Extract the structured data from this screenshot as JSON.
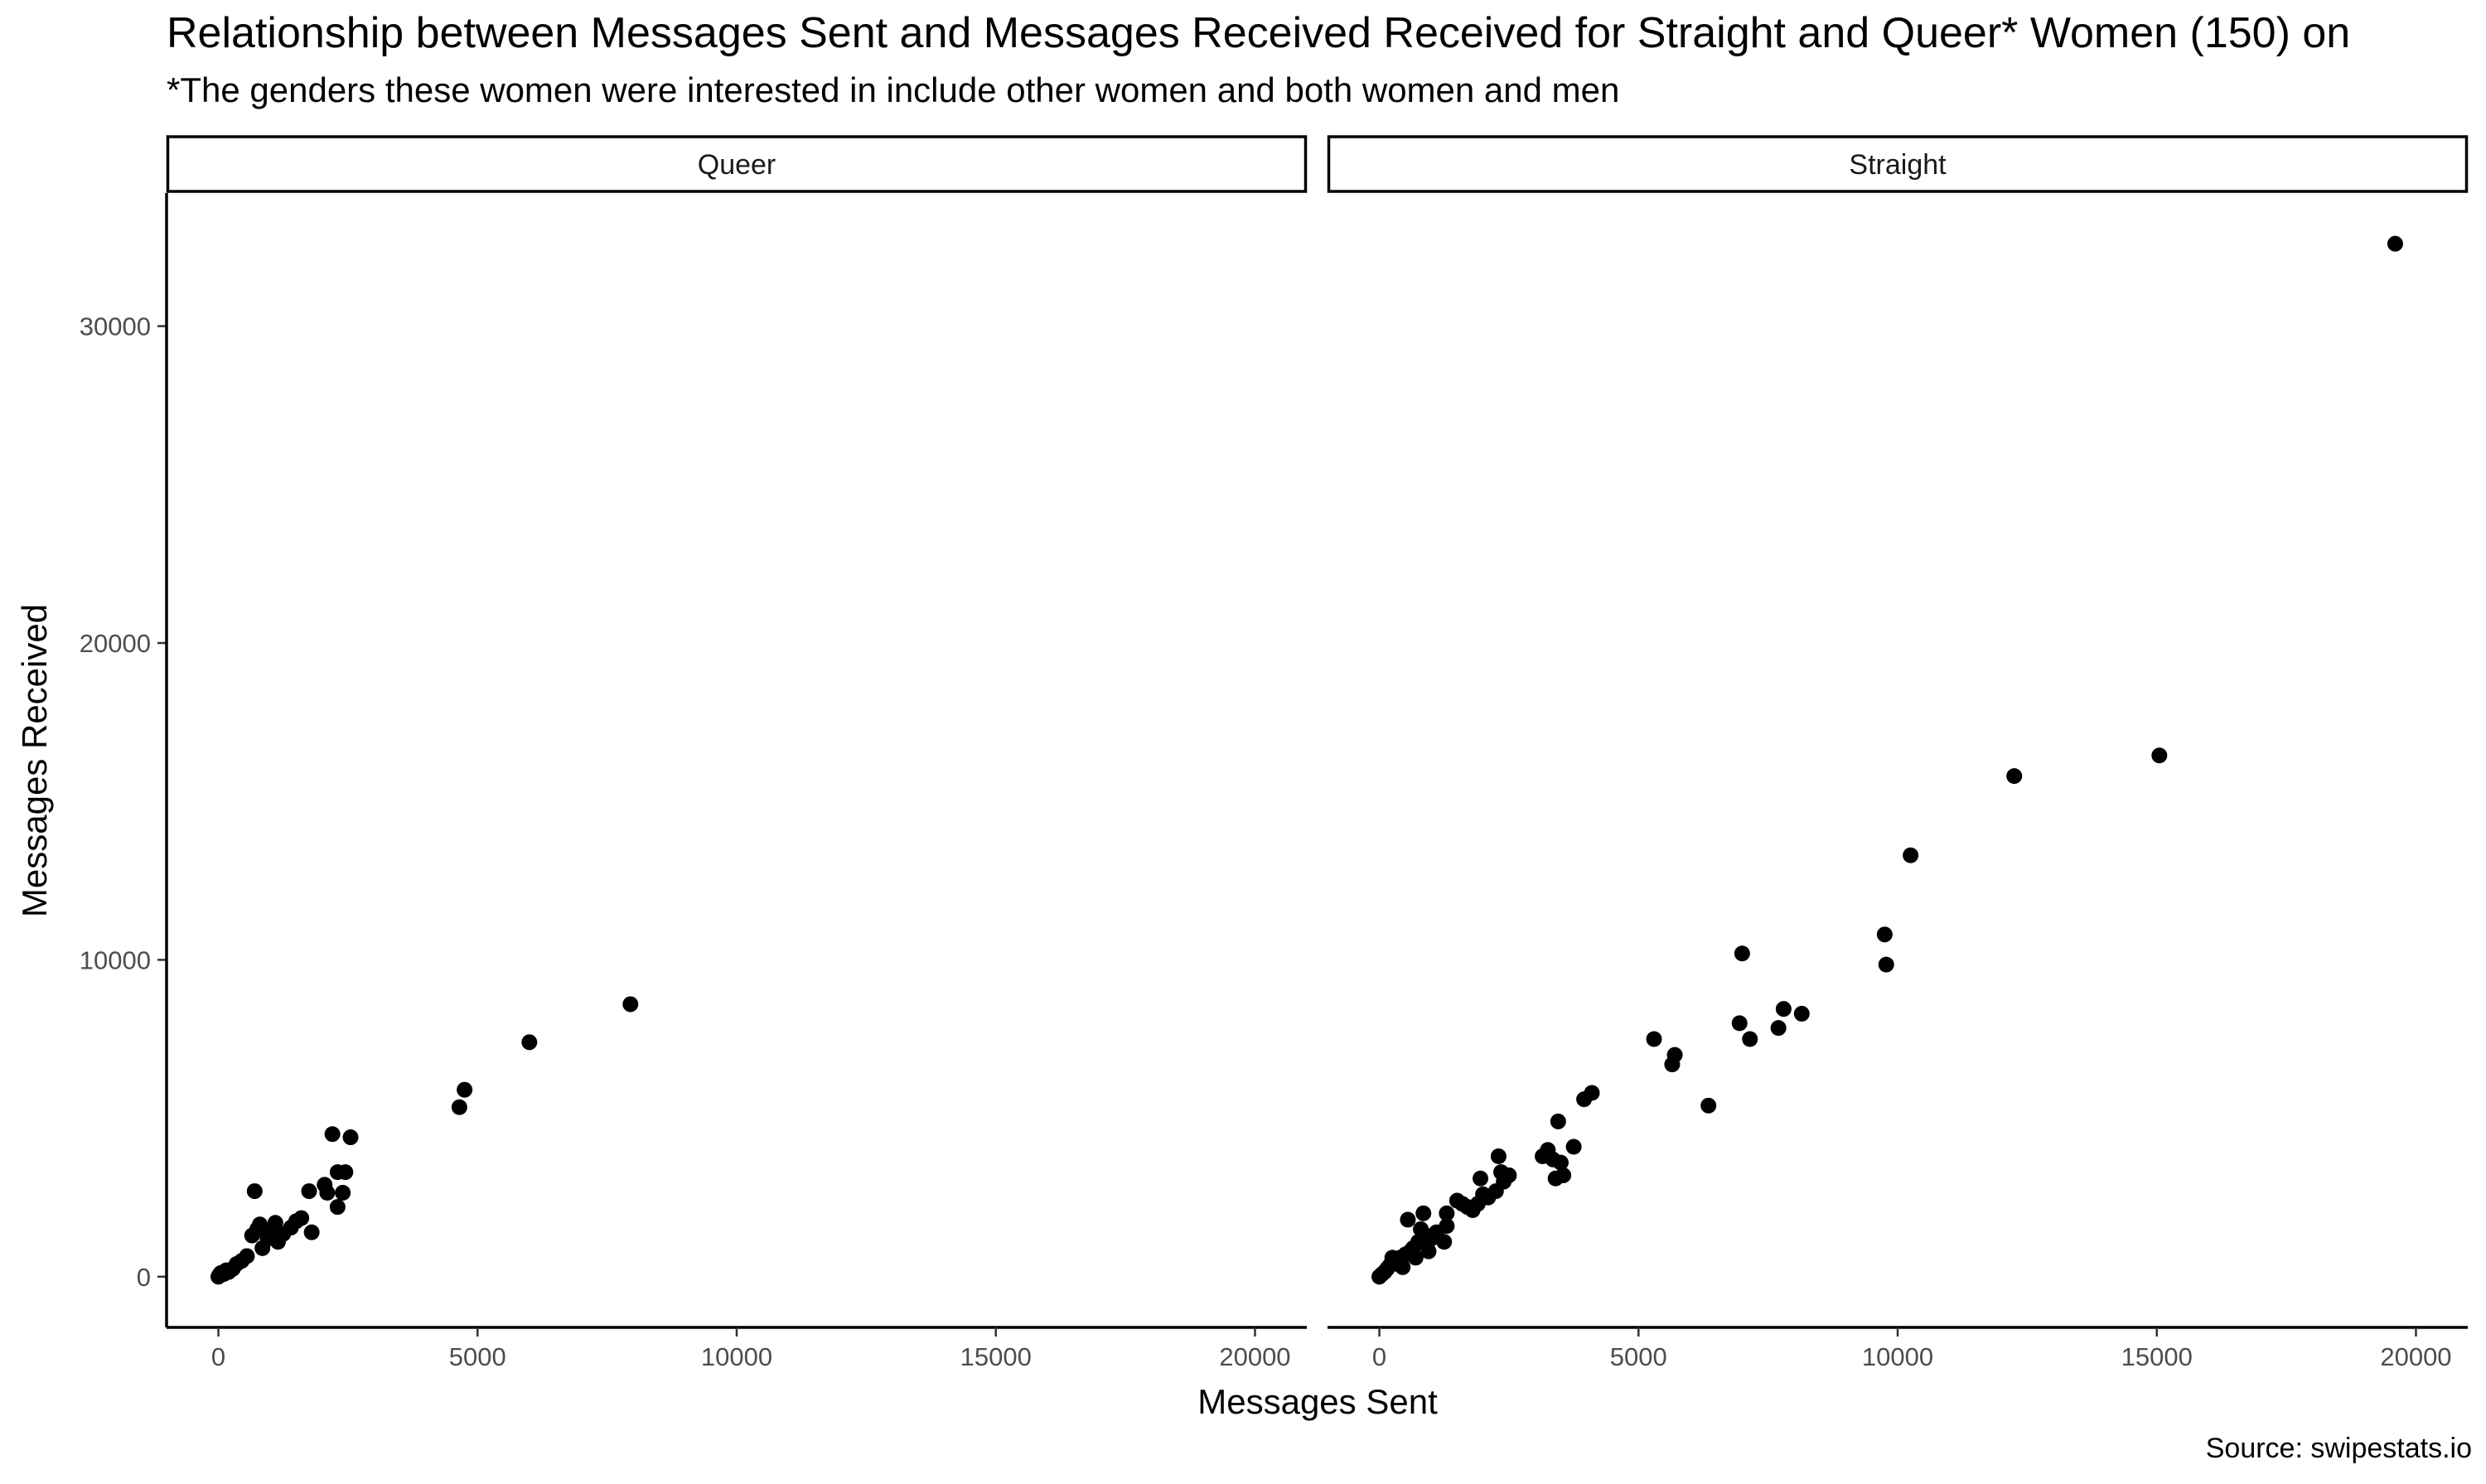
{
  "chart_data": {
    "type": "scatter",
    "title": "Relationship between Messages Sent and Messages Received Received for Straight and Queer* Women (150) on",
    "subtitle": "*The genders these women were interested in include other women and both women and men",
    "caption": "Source: swipestats.io",
    "xlabel": "Messages Sent",
    "ylabel": "Messages Received",
    "xlim": [
      -1000,
      21000
    ],
    "ylim": [
      -1600,
      34200
    ],
    "xticks": [
      0,
      5000,
      10000,
      15000,
      20000
    ],
    "yticks": [
      0,
      10000,
      20000,
      30000
    ],
    "point_color": "#000000",
    "panels": [
      {
        "label": "Queer",
        "points": [
          [
            0,
            0
          ],
          [
            20,
            60
          ],
          [
            50,
            120
          ],
          [
            100,
            80
          ],
          [
            150,
            200
          ],
          [
            200,
            150
          ],
          [
            280,
            250
          ],
          [
            350,
            400
          ],
          [
            450,
            500
          ],
          [
            550,
            650
          ],
          [
            650,
            1300
          ],
          [
            700,
            2700
          ],
          [
            750,
            1500
          ],
          [
            800,
            1650
          ],
          [
            850,
            900
          ],
          [
            950,
            1200
          ],
          [
            1000,
            1400
          ],
          [
            1100,
            1700
          ],
          [
            1150,
            1100
          ],
          [
            1250,
            1350
          ],
          [
            1400,
            1550
          ],
          [
            1500,
            1750
          ],
          [
            1600,
            1850
          ],
          [
            1750,
            2700
          ],
          [
            1800,
            1400
          ],
          [
            2050,
            2900
          ],
          [
            2100,
            2650
          ],
          [
            2200,
            4500
          ],
          [
            2300,
            2200
          ],
          [
            2300,
            3300
          ],
          [
            2400,
            2650
          ],
          [
            2450,
            3300
          ],
          [
            2550,
            4400
          ],
          [
            4650,
            5350
          ],
          [
            4750,
            5900
          ],
          [
            6000,
            7400
          ],
          [
            7950,
            8600
          ]
        ]
      },
      {
        "label": "Straight",
        "points": [
          [
            0,
            0
          ],
          [
            50,
            80
          ],
          [
            100,
            150
          ],
          [
            150,
            250
          ],
          [
            200,
            350
          ],
          [
            250,
            600
          ],
          [
            300,
            500
          ],
          [
            350,
            400
          ],
          [
            400,
            600
          ],
          [
            450,
            300
          ],
          [
            500,
            700
          ],
          [
            550,
            1800
          ],
          [
            600,
            800
          ],
          [
            650,
            900
          ],
          [
            700,
            600
          ],
          [
            750,
            1100
          ],
          [
            800,
            1500
          ],
          [
            850,
            2000
          ],
          [
            900,
            1300
          ],
          [
            950,
            800
          ],
          [
            1000,
            1200
          ],
          [
            1100,
            1400
          ],
          [
            1250,
            1100
          ],
          [
            1300,
            1600
          ],
          [
            1300,
            2000
          ],
          [
            1500,
            2400
          ],
          [
            1600,
            2300
          ],
          [
            1700,
            2200
          ],
          [
            1800,
            2100
          ],
          [
            1900,
            2300
          ],
          [
            1950,
            3100
          ],
          [
            2000,
            2600
          ],
          [
            2100,
            2500
          ],
          [
            2250,
            2700
          ],
          [
            2300,
            3800
          ],
          [
            2350,
            3300
          ],
          [
            2400,
            3000
          ],
          [
            2500,
            3200
          ],
          [
            3150,
            3800
          ],
          [
            3250,
            4000
          ],
          [
            3350,
            3700
          ],
          [
            3400,
            3100
          ],
          [
            3450,
            4900
          ],
          [
            3500,
            3600
          ],
          [
            3550,
            3200
          ],
          [
            3750,
            4100
          ],
          [
            3950,
            5600
          ],
          [
            4100,
            5800
          ],
          [
            5300,
            7500
          ],
          [
            5650,
            6700
          ],
          [
            5700,
            7000
          ],
          [
            6350,
            5400
          ],
          [
            6950,
            8000
          ],
          [
            7000,
            10200
          ],
          [
            7150,
            7500
          ],
          [
            7700,
            7850
          ],
          [
            7800,
            8450
          ],
          [
            8150,
            8300
          ],
          [
            9750,
            10800
          ],
          [
            9780,
            9850
          ],
          [
            10250,
            13300
          ],
          [
            12250,
            15800
          ],
          [
            15050,
            16450
          ],
          [
            19600,
            32600
          ]
        ]
      }
    ]
  }
}
